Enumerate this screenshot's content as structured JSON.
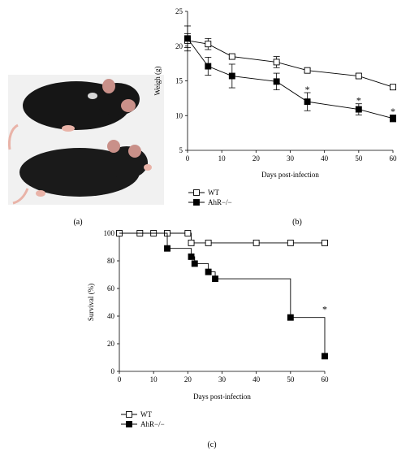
{
  "panel_labels": {
    "a": "(a)",
    "b": "(b)",
    "c": "(c)"
  },
  "colors": {
    "axis": "#000000",
    "fur": "#161616",
    "skin": "#e9b3a8",
    "ear": "#c99089"
  },
  "chart_data": [
    {
      "type": "line",
      "panel": "b",
      "xlabel": "Days post-infection",
      "ylabel": "Weigh (g)",
      "xlim": [
        0,
        60
      ],
      "ylim": [
        5,
        25
      ],
      "xticks": [
        0,
        10,
        20,
        30,
        40,
        50,
        60
      ],
      "yticks": [
        5,
        10,
        15,
        20,
        25
      ],
      "legend": {
        "placement": "bottom-left"
      },
      "series": [
        {
          "name": "WT",
          "marker": "open-square",
          "x": [
            0,
            6,
            13,
            26,
            35,
            50,
            60
          ],
          "y": [
            20.8,
            20.3,
            18.5,
            17.7,
            16.5,
            15.7,
            14.1
          ],
          "err": [
            1.0,
            0.8,
            0.3,
            0.8,
            0.3,
            0.3,
            0.3
          ]
        },
        {
          "name": "AhR−/−",
          "marker": "filled-square",
          "x": [
            0,
            6,
            13,
            26,
            35,
            50,
            60
          ],
          "y": [
            21.1,
            17.1,
            15.7,
            14.9,
            12.0,
            10.9,
            9.6
          ],
          "err": [
            1.8,
            1.3,
            1.7,
            1.2,
            1.3,
            0.8,
            0.5
          ]
        }
      ],
      "annotations": [
        {
          "text": "*",
          "x": 35,
          "y": 13.8
        },
        {
          "text": "*",
          "x": 50,
          "y": 12.2
        },
        {
          "text": "*",
          "x": 60,
          "y": 10.6
        }
      ]
    },
    {
      "type": "line",
      "panel": "c",
      "step": true,
      "xlabel": "Days post-infection",
      "ylabel": "Survival (%)",
      "xlim": [
        0,
        60
      ],
      "ylim": [
        0,
        100
      ],
      "xticks": [
        0,
        10,
        20,
        30,
        40,
        50,
        60
      ],
      "yticks": [
        0,
        20,
        40,
        60,
        80,
        100
      ],
      "legend": {
        "placement": "bottom-left"
      },
      "series": [
        {
          "name": "WT",
          "marker": "open-square",
          "x": [
            0,
            6,
            10,
            14,
            20,
            21,
            26,
            40,
            50,
            60
          ],
          "y": [
            100,
            100,
            100,
            100,
            100,
            93,
            93,
            93,
            93,
            93
          ]
        },
        {
          "name": "AhR−/−",
          "marker": "filled-square",
          "x": [
            0,
            14,
            21,
            22,
            26,
            28,
            50,
            60
          ],
          "y": [
            100,
            89,
            83,
            78,
            72,
            67,
            39,
            11
          ],
          "marker_from_index": 1
        }
      ],
      "annotations": [
        {
          "text": "*",
          "x": 60,
          "y": 45
        }
      ]
    }
  ]
}
